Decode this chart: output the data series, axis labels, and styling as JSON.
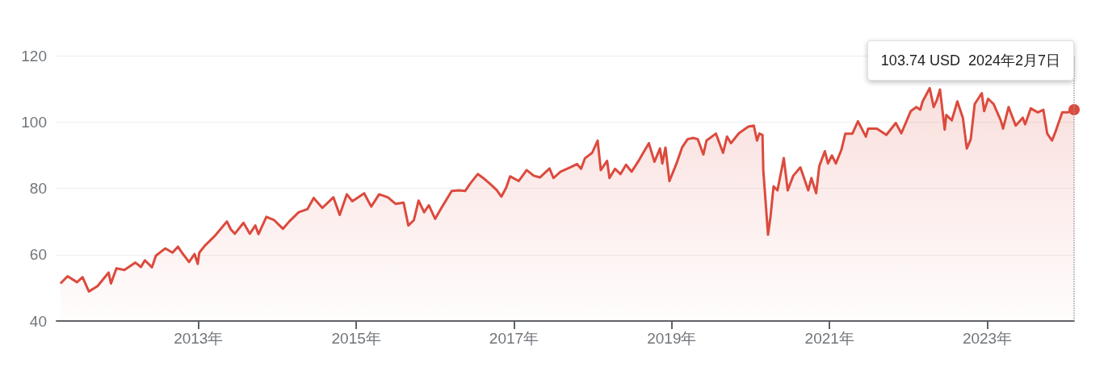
{
  "chart_data": {
    "type": "area",
    "color": "#dc4a3d",
    "x": [
      2011.25,
      2011.34,
      2011.46,
      2011.53,
      2011.61,
      2011.72,
      2011.86,
      2011.89,
      2011.96,
      2012.06,
      2012.2,
      2012.27,
      2012.32,
      2012.41,
      2012.46,
      2012.58,
      2012.67,
      2012.74,
      2012.79,
      2012.88,
      2012.95,
      2012.99,
      2013.01,
      2013.08,
      2013.22,
      2013.36,
      2013.41,
      2013.46,
      2013.57,
      2013.65,
      2013.72,
      2013.76,
      2013.86,
      2013.96,
      2014.07,
      2014.15,
      2014.27,
      2014.38,
      2014.46,
      2014.57,
      2014.71,
      2014.79,
      2014.88,
      2014.95,
      2015.1,
      2015.19,
      2015.29,
      2015.4,
      2015.5,
      2015.6,
      2015.66,
      2015.73,
      2015.79,
      2015.86,
      2015.92,
      2016.0,
      2016.09,
      2016.21,
      2016.3,
      2016.38,
      2016.45,
      2016.54,
      2016.61,
      2016.69,
      2016.78,
      2016.84,
      2016.9,
      2016.95,
      2017.06,
      2017.16,
      2017.25,
      2017.33,
      2017.45,
      2017.5,
      2017.59,
      2017.71,
      2017.8,
      2017.85,
      2017.9,
      2017.99,
      2018.06,
      2018.1,
      2018.18,
      2018.21,
      2018.28,
      2018.35,
      2018.42,
      2018.49,
      2018.58,
      2018.63,
      2018.71,
      2018.78,
      2018.85,
      2018.88,
      2018.92,
      2018.97,
      2019.06,
      2019.13,
      2019.2,
      2019.27,
      2019.33,
      2019.4,
      2019.44,
      2019.56,
      2019.65,
      2019.7,
      2019.75,
      2019.85,
      2019.97,
      2020.04,
      2020.08,
      2020.11,
      2020.15,
      2020.16,
      2020.22,
      2020.25,
      2020.29,
      2020.34,
      2020.42,
      2020.47,
      2020.54,
      2020.63,
      2020.73,
      2020.77,
      2020.83,
      2020.87,
      2020.94,
      2020.98,
      2021.03,
      2021.08,
      2021.15,
      2021.2,
      2021.29,
      2021.36,
      2021.46,
      2021.49,
      2021.6,
      2021.72,
      2021.84,
      2021.91,
      2022.03,
      2022.1,
      2022.15,
      2022.18,
      2022.27,
      2022.32,
      2022.36,
      2022.4,
      2022.46,
      2022.48,
      2022.55,
      2022.62,
      2022.69,
      2022.74,
      2022.79,
      2022.84,
      2022.93,
      2022.96,
      2023.01,
      2023.08,
      2023.17,
      2023.2,
      2023.27,
      2023.36,
      2023.45,
      2023.48,
      2023.55,
      2023.64,
      2023.71,
      2023.76,
      2023.82,
      2023.86,
      2023.95,
      2024.02,
      2024.1
    ],
    "values": [
      51.3,
      53.5,
      51.7,
      53.2,
      48.9,
      50.5,
      54.6,
      51.3,
      55.9,
      55.4,
      57.6,
      56.3,
      58.3,
      56.2,
      59.7,
      61.9,
      60.6,
      62.4,
      60.6,
      57.8,
      60.2,
      57.2,
      60.6,
      62.7,
      66.0,
      70.0,
      67.6,
      66.3,
      69.6,
      66.3,
      68.8,
      66.2,
      71.4,
      70.4,
      67.8,
      70.0,
      72.8,
      73.7,
      77.1,
      74.1,
      77.3,
      72.0,
      78.2,
      76.1,
      78.5,
      74.5,
      78.2,
      77.3,
      75.3,
      75.7,
      68.8,
      70.4,
      76.3,
      72.8,
      74.9,
      70.8,
      74.5,
      79.2,
      79.4,
      79.2,
      81.6,
      84.3,
      83.1,
      81.5,
      79.5,
      77.5,
      80.2,
      83.6,
      82.2,
      85.5,
      83.8,
      83.3,
      86.0,
      83.1,
      85.0,
      86.3,
      87.3,
      85.9,
      89.1,
      90.7,
      94.4,
      85.5,
      88.3,
      83.1,
      85.9,
      84.3,
      87.1,
      85.0,
      88.3,
      90.4,
      93.6,
      88.0,
      92.0,
      87.5,
      92.3,
      82.2,
      87.5,
      92.3,
      94.8,
      95.2,
      94.8,
      90.2,
      94.4,
      96.5,
      90.7,
      95.6,
      93.6,
      96.6,
      98.6,
      98.9,
      94.4,
      96.5,
      96.1,
      85.5,
      66.0,
      71.2,
      80.6,
      79.4,
      89.1,
      79.4,
      83.8,
      86.3,
      79.4,
      83.1,
      78.5,
      86.7,
      91.2,
      87.5,
      89.9,
      87.5,
      91.6,
      96.5,
      96.5,
      100.2,
      95.6,
      98.0,
      98.0,
      96.1,
      99.7,
      96.6,
      103.3,
      104.5,
      103.7,
      106.2,
      110.2,
      104.5,
      106.6,
      109.8,
      97.7,
      102.1,
      100.5,
      106.2,
      101.3,
      92.0,
      94.8,
      105.4,
      108.7,
      103.3,
      107.0,
      105.4,
      100.5,
      98.0,
      104.5,
      98.9,
      101.3,
      99.3,
      104.1,
      102.9,
      103.7,
      96.5,
      94.4,
      96.8,
      102.9,
      102.9,
      103.7
    ],
    "xlim": [
      2011.2,
      2024.1
    ],
    "xticks": [
      {
        "value": 2013,
        "label": "2013年"
      },
      {
        "value": 2015,
        "label": "2015年"
      },
      {
        "value": 2017,
        "label": "2017年"
      },
      {
        "value": 2019,
        "label": "2019年"
      },
      {
        "value": 2021,
        "label": "2021年"
      },
      {
        "value": 2023,
        "label": "2023年"
      }
    ],
    "ylim": [
      40,
      120
    ],
    "yticks": [
      40,
      60,
      80,
      100,
      120
    ],
    "grid": "y",
    "ref_lines": [
      {
        "axis": "x",
        "value": 2024.1,
        "color": "#9e9e9e",
        "line_style": "dotted"
      }
    ],
    "annotations": [
      "103.74 USD  2024年2月7日"
    ]
  }
}
